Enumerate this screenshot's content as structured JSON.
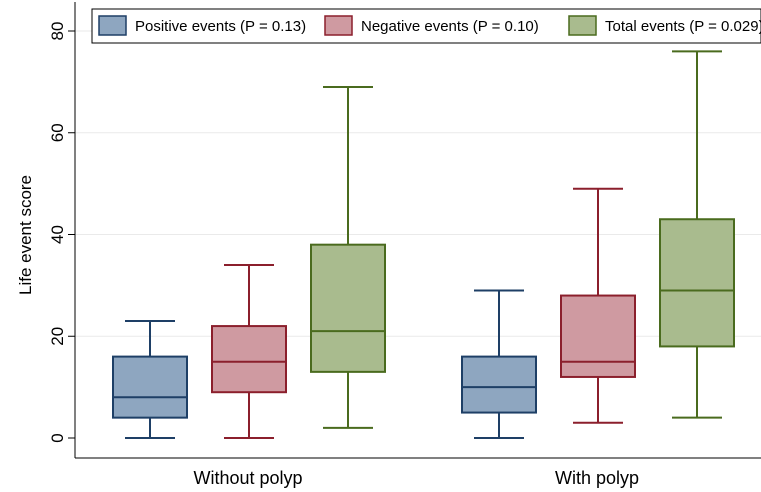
{
  "chart_data": {
    "type": "box",
    "ylabel": "Life event score",
    "ylim": [
      -4,
      84
    ],
    "yticks": [
      0,
      20,
      40,
      60,
      80
    ],
    "grid": true,
    "groups": [
      "Without polyp",
      "With polyp"
    ],
    "legend_position": "top",
    "series": [
      {
        "name": "Positive events (P = 0.13)",
        "fill": "#8ea6c0",
        "stroke": "#1e3f66",
        "boxes": [
          {
            "min": 0,
            "q1": 4,
            "median": 8,
            "q3": 16,
            "max": 23
          },
          {
            "min": 0,
            "q1": 5,
            "median": 10,
            "q3": 16,
            "max": 29
          }
        ]
      },
      {
        "name": "Negative events (P = 0.10)",
        "fill": "#cf9aa1",
        "stroke": "#8b1f2c",
        "boxes": [
          {
            "min": 0,
            "q1": 9,
            "median": 15,
            "q3": 22,
            "max": 34
          },
          {
            "min": 3,
            "q1": 12,
            "median": 15,
            "q3": 28,
            "max": 49
          }
        ]
      },
      {
        "name": "Total events (P = 0.029)",
        "fill": "#a9bb8e",
        "stroke": "#4a6b1e",
        "boxes": [
          {
            "min": 2,
            "q1": 13,
            "median": 21,
            "q3": 38,
            "max": 69
          },
          {
            "min": 4,
            "q1": 18,
            "median": 29,
            "q3": 43,
            "max": 76
          }
        ]
      }
    ]
  }
}
